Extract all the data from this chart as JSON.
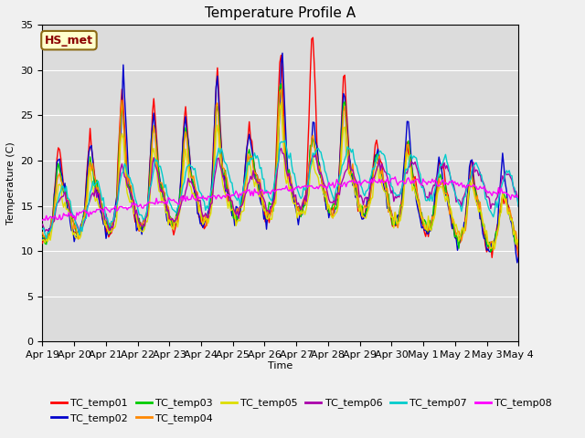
{
  "title": "Temperature Profile A",
  "xlabel": "Time",
  "ylabel": "Temperature (C)",
  "ylim": [
    0,
    35
  ],
  "yticks": [
    0,
    5,
    10,
    15,
    20,
    25,
    30,
    35
  ],
  "x_tick_labels": [
    "Apr 19",
    "Apr 20",
    "Apr 21",
    "Apr 22",
    "Apr 23",
    "Apr 24",
    "Apr 25",
    "Apr 26",
    "Apr 27",
    "Apr 28",
    "Apr 29",
    "Apr 30",
    "May 1",
    "May 2",
    "May 3",
    "May 4"
  ],
  "annotation_text": "HS_met",
  "annotation_color": "#8B0000",
  "annotation_bg": "#FFFFCC",
  "annotation_border": "#8B6914",
  "series_colors": {
    "TC_temp01": "#FF0000",
    "TC_temp02": "#0000CC",
    "TC_temp03": "#00CC00",
    "TC_temp04": "#FF8800",
    "TC_temp05": "#DDDD00",
    "TC_temp06": "#AA00AA",
    "TC_temp07": "#00CCCC",
    "TC_temp08": "#FF00FF"
  },
  "bg_color": "#DCDCDC",
  "grid_color": "#FFFFFF",
  "title_fontsize": 11,
  "axis_fontsize": 8,
  "tick_fontsize": 8
}
